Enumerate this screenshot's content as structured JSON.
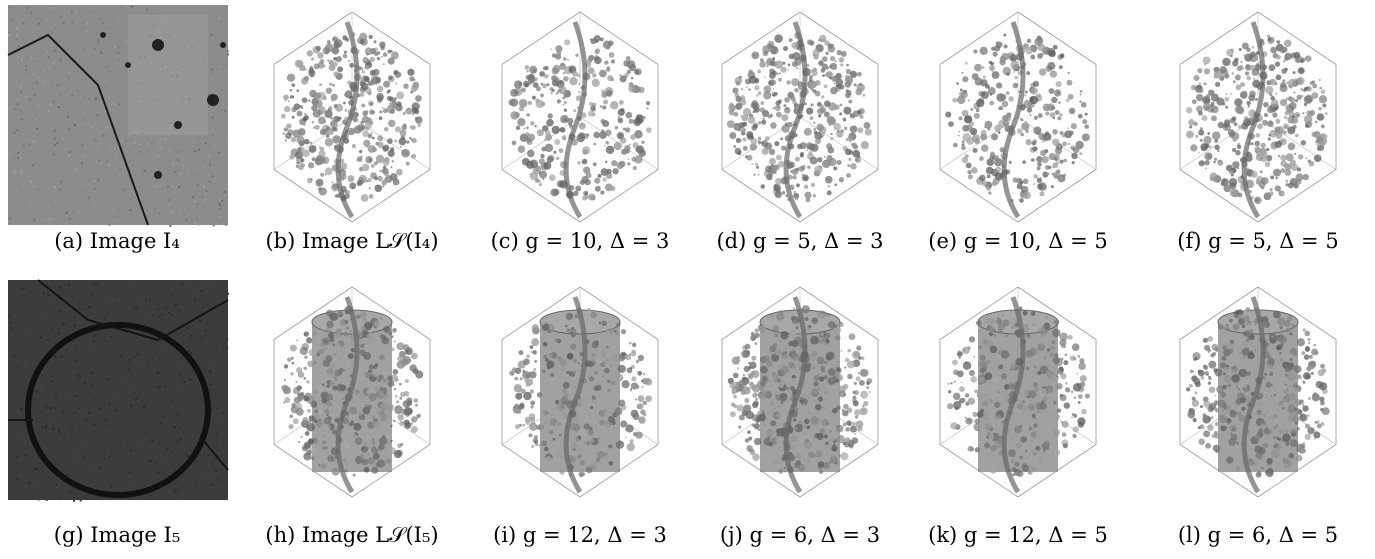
{
  "rows": [
    {
      "panels": [
        {
          "caption": "(a) Image I₄"
        },
        {
          "caption": "(b) Image L𝒮(I₄)"
        },
        {
          "caption": "(c) g = 10, Δ = 3"
        },
        {
          "caption": "(d) g = 5, Δ = 3"
        },
        {
          "caption": "(e) g = 10, Δ = 5"
        },
        {
          "caption": "(f) g = 5, Δ = 5"
        }
      ]
    },
    {
      "panels": [
        {
          "caption": "(g) Image I₅"
        },
        {
          "caption": "(h) Image L𝒮(I₅)"
        },
        {
          "caption": "(i) g = 12, Δ = 3"
        },
        {
          "caption": "(j) g = 6, Δ = 3"
        },
        {
          "caption": "(k) g = 12, Δ = 5"
        },
        {
          "caption": "(l) g = 6, Δ = 5"
        }
      ]
    }
  ]
}
